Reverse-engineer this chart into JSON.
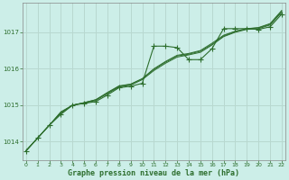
{
  "title": "Graphe pression niveau de la mer (hPa)",
  "bg_color": "#cceee8",
  "grid_color": "#b8d8d0",
  "line_color": "#2d6e2d",
  "x_values": [
    0,
    1,
    2,
    3,
    4,
    5,
    6,
    7,
    8,
    9,
    10,
    11,
    12,
    13,
    14,
    15,
    16,
    17,
    18,
    19,
    20,
    21,
    22
  ],
  "y_main": [
    1013.75,
    1014.1,
    1014.45,
    1014.75,
    1015.0,
    1015.05,
    1015.1,
    1015.28,
    1015.48,
    1015.52,
    1015.6,
    1016.62,
    1016.62,
    1016.58,
    1016.25,
    1016.25,
    1016.55,
    1017.1,
    1017.1,
    1017.1,
    1017.08,
    1017.15,
    1017.5
  ],
  "y_smooth1": [
    1013.75,
    1014.1,
    1014.45,
    1014.78,
    1015.0,
    1015.06,
    1015.13,
    1015.32,
    1015.5,
    1015.55,
    1015.7,
    1015.95,
    1016.15,
    1016.32,
    1016.38,
    1016.45,
    1016.65,
    1016.88,
    1017.0,
    1017.08,
    1017.1,
    1017.2,
    1017.55
  ],
  "y_smooth2": [
    1013.75,
    1014.1,
    1014.45,
    1014.8,
    1015.0,
    1015.07,
    1015.15,
    1015.33,
    1015.52,
    1015.57,
    1015.72,
    1015.98,
    1016.18,
    1016.35,
    1016.4,
    1016.48,
    1016.67,
    1016.9,
    1017.02,
    1017.1,
    1017.12,
    1017.22,
    1017.58
  ],
  "y_smooth3": [
    1013.75,
    1014.1,
    1014.45,
    1014.82,
    1015.0,
    1015.07,
    1015.15,
    1015.35,
    1015.53,
    1015.58,
    1015.73,
    1016.0,
    1016.2,
    1016.37,
    1016.42,
    1016.5,
    1016.7,
    1016.92,
    1017.03,
    1017.1,
    1017.13,
    1017.24,
    1017.6
  ],
  "ylim": [
    1013.5,
    1017.8
  ],
  "xlim": [
    -0.3,
    22.3
  ],
  "yticks": [
    1014,
    1015,
    1016,
    1017
  ],
  "xticks": [
    0,
    1,
    2,
    3,
    4,
    5,
    6,
    7,
    8,
    9,
    10,
    11,
    12,
    13,
    14,
    15,
    16,
    17,
    18,
    19,
    20,
    21,
    22
  ]
}
